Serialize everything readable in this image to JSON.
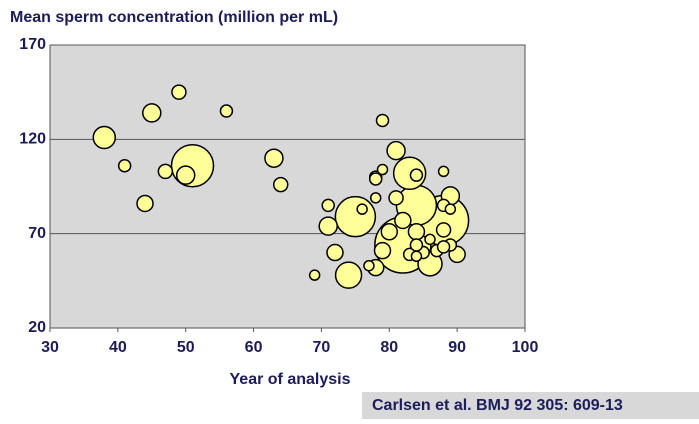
{
  "chart_data": {
    "type": "bubble",
    "title": "Mean sperm concentration (million per mL)",
    "x_label": "Year of analysis",
    "source": "Carlsen et al. BMJ 92 305: 609-13",
    "x": [
      82,
      88,
      51,
      75,
      84,
      83,
      74,
      86,
      38,
      45,
      63,
      50,
      81,
      89,
      71,
      44,
      49,
      80,
      79,
      78,
      82,
      84,
      72,
      90,
      47,
      64,
      81,
      88,
      56,
      41,
      71,
      79,
      78,
      84,
      88,
      87,
      89,
      85,
      83,
      84,
      76,
      78,
      79,
      69,
      88,
      77,
      86,
      84,
      89,
      88,
      78
    ],
    "values": [
      64,
      77,
      106,
      79,
      85,
      102,
      48,
      54,
      121,
      134,
      110,
      101,
      114,
      90,
      74,
      86,
      145,
      71,
      61,
      52,
      77,
      71,
      60,
      59,
      103,
      96,
      89,
      72,
      135,
      106,
      85,
      130,
      100,
      101,
      85,
      61,
      64,
      60,
      59,
      64,
      83,
      89,
      104,
      48,
      103,
      53,
      67,
      58,
      83,
      63,
      99
    ],
    "sizes": [
      28,
      25,
      21,
      20,
      20,
      16,
      13,
      12,
      11,
      9,
      9,
      9,
      9,
      9,
      9,
      8,
      7,
      8,
      8,
      8,
      8,
      8,
      8,
      8,
      7,
      7,
      7,
      7,
      6,
      6,
      6,
      6,
      6,
      6,
      6,
      6,
      6,
      6,
      6,
      6,
      5,
      5,
      5,
      5,
      5,
      5,
      5,
      5,
      5,
      6,
      6
    ],
    "color": "#ffff99",
    "xlim": [
      30,
      100
    ],
    "xticks": [
      30,
      40,
      50,
      60,
      70,
      80,
      90,
      100
    ],
    "ylim": [
      20,
      170
    ],
    "yticks": [
      20,
      70,
      120,
      170
    ],
    "grid": true
  }
}
